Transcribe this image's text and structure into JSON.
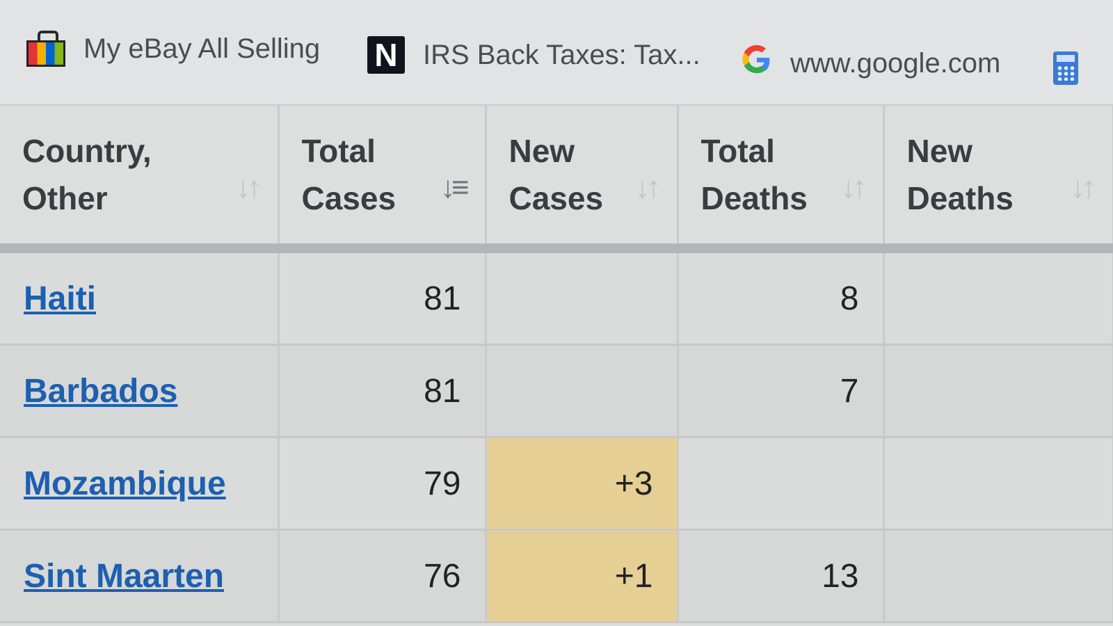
{
  "bookmarks": [
    {
      "label": "My eBay All Selling",
      "icon": "ebay-bag-icon"
    },
    {
      "label": "IRS Back Taxes: Tax...",
      "icon": "n-logo-icon"
    },
    {
      "label": "www.google.com",
      "icon": "google-g-icon"
    },
    {
      "label": "",
      "icon": "calculator-icon"
    }
  ],
  "colors": {
    "link": "#1d5fb0",
    "new_cases_highlight": "#e6cf95",
    "header_bg": "#dddfde"
  },
  "table": {
    "headers": [
      {
        "label": "Country,\nOther",
        "sort_icon": "sort-icon"
      },
      {
        "label": "Total\nCases",
        "sort_icon": "sort-desc-icon",
        "active": true
      },
      {
        "label": "New\nCases",
        "sort_icon": "sort-icon"
      },
      {
        "label": "Total\nDeaths",
        "sort_icon": "sort-icon"
      },
      {
        "label": "New\nDeaths",
        "sort_icon": "sort-icon"
      }
    ],
    "rows": [
      {
        "country": "Haiti",
        "total_cases": "81",
        "new_cases": "",
        "total_deaths": "8",
        "new_deaths": ""
      },
      {
        "country": "Barbados",
        "total_cases": "81",
        "new_cases": "",
        "total_deaths": "7",
        "new_deaths": ""
      },
      {
        "country": "Mozambique",
        "total_cases": "79",
        "new_cases": "+3",
        "total_deaths": "",
        "new_deaths": ""
      },
      {
        "country": "Sint Maarten",
        "total_cases": "76",
        "new_cases": "+1",
        "total_deaths": "13",
        "new_deaths": ""
      }
    ]
  }
}
